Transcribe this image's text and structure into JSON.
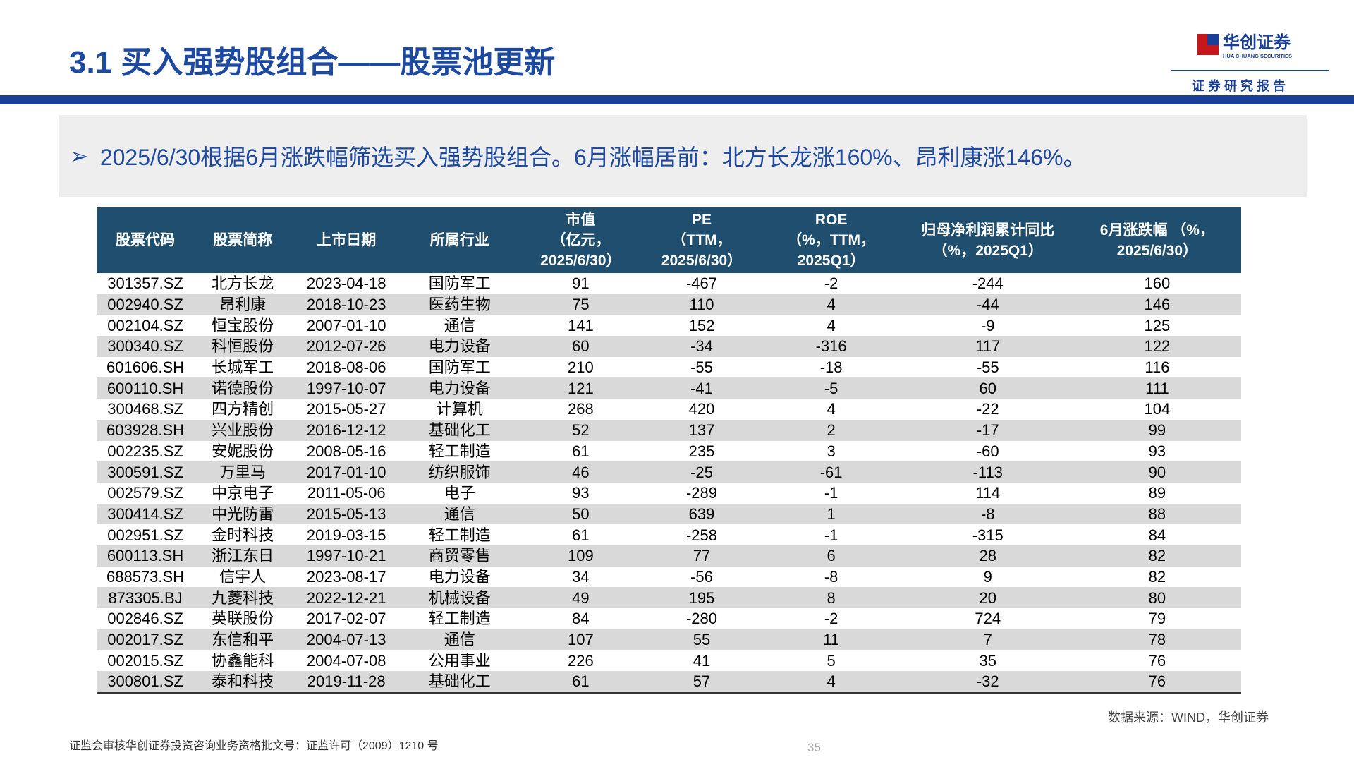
{
  "header": {
    "title": "3.1 买入强势股组合——股票池更新",
    "logo_name": "华创证券",
    "logo_en": "HUA CHUANG SECURITIES",
    "tagline": "证 券 研 究 报 告"
  },
  "summary": {
    "bullet": "➢",
    "text": "2025/6/30根据6月涨跌幅筛选买入强势股组合。6月涨幅居前：北方长龙涨160%、昂利康涨146%。"
  },
  "table": {
    "headers": [
      [
        "股票代码"
      ],
      [
        "股票简称"
      ],
      [
        "上市日期"
      ],
      [
        "所属行业"
      ],
      [
        "市值",
        "（亿元，",
        "2025/6/30）"
      ],
      [
        "PE",
        "（TTM，",
        "2025/6/30）"
      ],
      [
        "ROE",
        "（%，TTM，",
        "2025Q1）"
      ],
      [
        "归母净利润累计同比",
        "（%，2025Q1）"
      ],
      [
        "6月涨跌幅 （%，",
        "2025/6/30）"
      ]
    ],
    "rows": [
      [
        "301357.SZ",
        "北方长龙",
        "2023-04-18",
        "国防军工",
        91,
        -467,
        -2,
        -244,
        160
      ],
      [
        "002940.SZ",
        "昂利康",
        "2018-10-23",
        "医药生物",
        75,
        110,
        4,
        -44,
        146
      ],
      [
        "002104.SZ",
        "恒宝股份",
        "2007-01-10",
        "通信",
        141,
        152,
        4,
        -9,
        125
      ],
      [
        "300340.SZ",
        "科恒股份",
        "2012-07-26",
        "电力设备",
        60,
        -34,
        -316,
        117,
        122
      ],
      [
        "601606.SH",
        "长城军工",
        "2018-08-06",
        "国防军工",
        210,
        -55,
        -18,
        -55,
        116
      ],
      [
        "600110.SH",
        "诺德股份",
        "1997-10-07",
        "电力设备",
        121,
        -41,
        -5,
        60,
        111
      ],
      [
        "300468.SZ",
        "四方精创",
        "2015-05-27",
        "计算机",
        268,
        420,
        4,
        -22,
        104
      ],
      [
        "603928.SH",
        "兴业股份",
        "2016-12-12",
        "基础化工",
        52,
        137,
        2,
        -17,
        99
      ],
      [
        "002235.SZ",
        "安妮股份",
        "2008-05-16",
        "轻工制造",
        61,
        235,
        3,
        -60,
        93
      ],
      [
        "300591.SZ",
        "万里马",
        "2017-01-10",
        "纺织服饰",
        46,
        -25,
        -61,
        -113,
        90
      ],
      [
        "002579.SZ",
        "中京电子",
        "2011-05-06",
        "电子",
        93,
        -289,
        -1,
        114,
        89
      ],
      [
        "300414.SZ",
        "中光防雷",
        "2015-05-13",
        "通信",
        50,
        639,
        1,
        -8,
        88
      ],
      [
        "002951.SZ",
        "金时科技",
        "2019-03-15",
        "轻工制造",
        61,
        -258,
        -1,
        -315,
        84
      ],
      [
        "600113.SH",
        "浙江东日",
        "1997-10-21",
        "商贸零售",
        109,
        77,
        6,
        28,
        82
      ],
      [
        "688573.SH",
        "信宇人",
        "2023-08-17",
        "电力设备",
        34,
        -56,
        -8,
        9,
        82
      ],
      [
        "873305.BJ",
        "九菱科技",
        "2022-12-21",
        "机械设备",
        49,
        195,
        8,
        20,
        80
      ],
      [
        "002846.SZ",
        "英联股份",
        "2017-02-07",
        "轻工制造",
        84,
        -280,
        -2,
        724,
        79
      ],
      [
        "002017.SZ",
        "东信和平",
        "2004-07-13",
        "通信",
        107,
        55,
        11,
        7,
        78
      ],
      [
        "002015.SZ",
        "协鑫能科",
        "2004-07-08",
        "公用事业",
        226,
        41,
        5,
        35,
        76
      ],
      [
        "300801.SZ",
        "泰和科技",
        "2019-11-28",
        "基础化工",
        61,
        57,
        4,
        -32,
        76
      ]
    ]
  },
  "source": "数据来源：WIND，华创证券",
  "footer": {
    "license": "证监会审核华创证券投资咨询业务资格批文号：证监许可（2009）1210 号",
    "page": "35"
  }
}
